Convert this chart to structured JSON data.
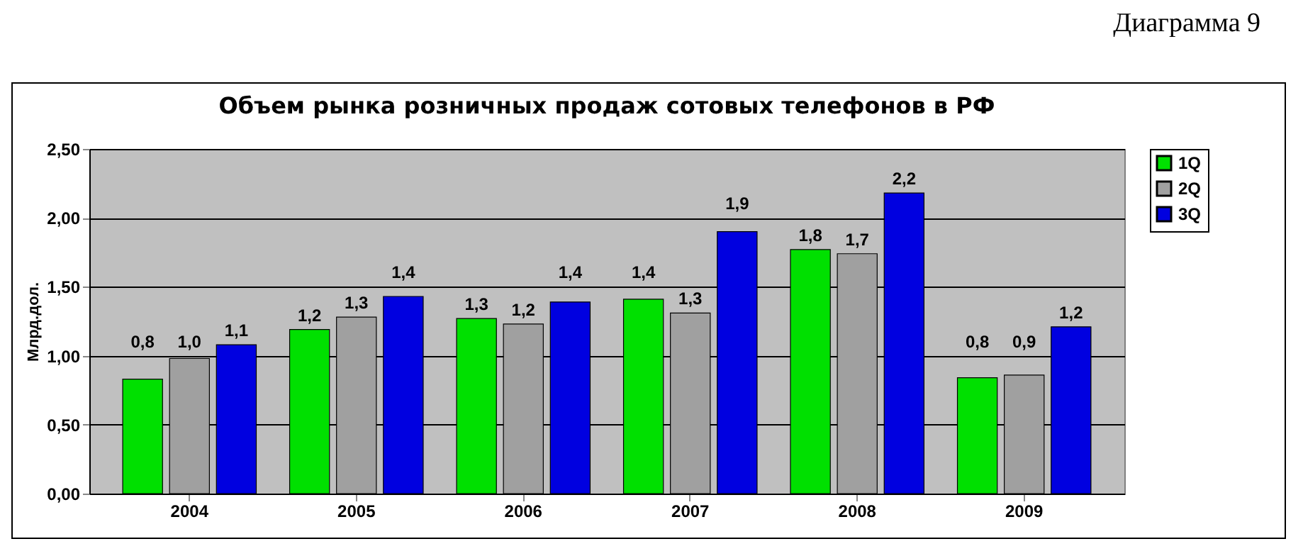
{
  "chart_data": {
    "type": "bar",
    "title": "Объем рынка розничных продаж сотовых телефонов в РФ",
    "ylabel": "Млрд.дол.",
    "annotations": [
      "Диаграмма 9"
    ],
    "categories": [
      "2004",
      "2005",
      "2006",
      "2007",
      "2008",
      "2009"
    ],
    "series": [
      {
        "name": "1Q",
        "color": "#00e000",
        "values": [
          0.83,
          1.19,
          1.27,
          1.41,
          1.77,
          0.84
        ],
        "value_labels": [
          "0,8",
          "1,2",
          "1,3",
          "1,4",
          "1,8",
          "0,8"
        ]
      },
      {
        "name": "2Q",
        "color": "#a0a0a0",
        "values": [
          0.98,
          1.28,
          1.23,
          1.31,
          1.74,
          0.86
        ],
        "value_labels": [
          "1,0",
          "1,3",
          "1,2",
          "1,3",
          "1,7",
          "0,9"
        ]
      },
      {
        "name": "3Q",
        "color": "#0000e0",
        "values": [
          1.08,
          1.43,
          1.39,
          1.9,
          2.18,
          1.21
        ],
        "value_labels": [
          "1,1",
          "1,4",
          "1,4",
          "1,9",
          "2,2",
          "1,2"
        ]
      }
    ],
    "ylim": [
      0,
      2.5
    ],
    "yticks": [
      {
        "value": 0,
        "label": "0,00"
      },
      {
        "value": 0.5,
        "label": "0,50"
      },
      {
        "value": 1,
        "label": "1,00"
      },
      {
        "value": 1.5,
        "label": "1,50"
      },
      {
        "value": 2,
        "label": "2,00"
      },
      {
        "value": 2.5,
        "label": "2,50"
      }
    ],
    "grid": "y",
    "legend": "right"
  }
}
